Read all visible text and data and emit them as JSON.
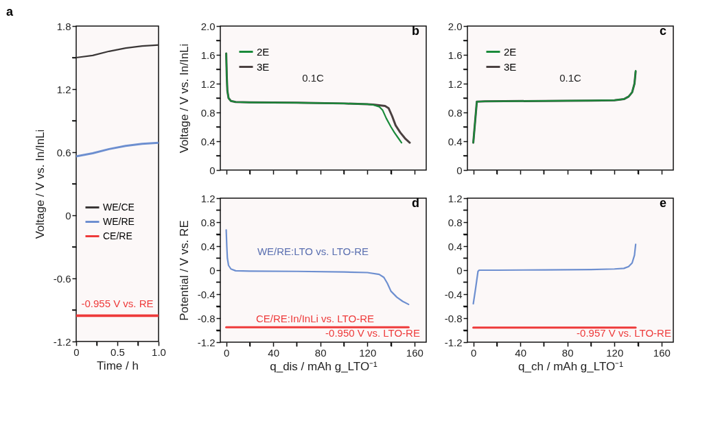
{
  "chart_data": [
    {
      "type": "line",
      "title": "a",
      "xlabel": "Time / h",
      "ylabel": "Voltage / V vs. In/InLi",
      "x": [
        0,
        0.2,
        0.4,
        0.6,
        0.8,
        1.0
      ],
      "series": [
        {
          "name": "WE/CE",
          "color": "#3a3636",
          "values": [
            1.5,
            1.52,
            1.56,
            1.59,
            1.61,
            1.62
          ]
        },
        {
          "name": "WE/RE",
          "color": "#6d8fd0",
          "values": [
            0.56,
            0.59,
            0.63,
            0.66,
            0.68,
            0.69
          ]
        },
        {
          "name": "CE/RE",
          "color": "#ee3a3a",
          "values": [
            -0.955,
            -0.955,
            -0.955,
            -0.955,
            -0.955,
            -0.955
          ]
        }
      ],
      "xlim": [
        0,
        1
      ],
      "xticks": [
        0,
        {
          "value": 0.25,
          "label": null
        },
        0.5,
        {
          "value": 0.75,
          "label": null
        },
        {
          "value": 1,
          "label": "1.0"
        }
      ],
      "ylim": [
        -1.2,
        1.8
      ],
      "yticks": [
        -1.2,
        {
          "value": -0.9,
          "label": null
        },
        -0.6,
        {
          "value": -0.3,
          "label": null
        },
        0,
        {
          "value": 0.3,
          "label": null
        },
        0.6,
        {
          "value": 0.9,
          "label": null
        },
        1.2,
        {
          "value": 1.5,
          "label": null
        },
        1.8
      ],
      "annotations": [
        "-0.955 V vs. RE"
      ],
      "legend": "left",
      "grid": false
    },
    {
      "type": "line",
      "title": "b",
      "ylabel": "Voltage / V vs. In/InLi",
      "series": [
        {
          "name": "2E",
          "color": "#1a8a3a",
          "x": [
            0,
            0.5,
            1,
            2,
            4,
            8,
            20,
            60,
            100,
            120,
            125,
            130,
            133,
            136,
            140,
            143,
            146,
            149
          ],
          "values": [
            1.62,
            1.3,
            1.1,
            1.0,
            0.96,
            0.945,
            0.94,
            0.935,
            0.925,
            0.915,
            0.905,
            0.88,
            0.83,
            0.72,
            0.6,
            0.52,
            0.45,
            0.38
          ]
        },
        {
          "name": "3E",
          "color": "#4a4040",
          "x": [
            0,
            0.5,
            1,
            2,
            4,
            8,
            20,
            60,
            100,
            120,
            125,
            130,
            135,
            138,
            141,
            144,
            148,
            152,
            156
          ],
          "values": [
            1.62,
            1.3,
            1.1,
            1.0,
            0.96,
            0.945,
            0.94,
            0.935,
            0.925,
            0.915,
            0.91,
            0.9,
            0.89,
            0.86,
            0.75,
            0.62,
            0.52,
            0.44,
            0.38
          ]
        }
      ],
      "xlim": [
        -5,
        170
      ],
      "xticks": [
        0,
        {
          "value": 20,
          "label": null
        },
        40,
        {
          "value": 60,
          "label": null
        },
        80,
        {
          "value": 100,
          "label": null
        },
        120,
        {
          "value": 140,
          "label": null
        },
        160
      ],
      "ylim": [
        0,
        2
      ],
      "yticks": [
        0,
        {
          "value": 0.2,
          "label": null
        },
        0.4,
        {
          "value": 0.6,
          "label": null
        },
        0.8,
        {
          "value": 1.0,
          "label": null
        },
        1.2,
        {
          "value": 1.4,
          "label": null
        },
        1.6,
        {
          "value": 1.8,
          "label": null
        },
        {
          "value": 2,
          "label": "2.0"
        }
      ],
      "tick_labels": "y",
      "annotations": [
        "0.1C"
      ],
      "legend": "top left",
      "grid": false
    },
    {
      "type": "line",
      "title": "c",
      "series": [
        {
          "name": "2E",
          "color": "#1a8a3a",
          "x": [
            0,
            3,
            10,
            60,
            100,
            120,
            128,
            132,
            135,
            137,
            138
          ],
          "values": [
            0.38,
            0.95,
            0.955,
            0.96,
            0.965,
            0.97,
            0.985,
            1.02,
            1.08,
            1.2,
            1.38
          ]
        },
        {
          "name": "3E",
          "color": "#4a4040",
          "x": [
            0,
            3,
            10,
            60,
            100,
            120,
            128,
            132,
            135,
            137,
            138
          ],
          "values": [
            0.38,
            0.95,
            0.955,
            0.96,
            0.965,
            0.97,
            0.985,
            1.02,
            1.08,
            1.2,
            1.37
          ]
        }
      ],
      "xlim": [
        -5,
        170
      ],
      "xticks": [
        0,
        {
          "value": 20,
          "label": null
        },
        40,
        {
          "value": 60,
          "label": null
        },
        80,
        {
          "value": 100,
          "label": null
        },
        120,
        {
          "value": 140,
          "label": null
        },
        160
      ],
      "ylim": [
        0,
        2
      ],
      "yticks": [
        0,
        {
          "value": 0.2,
          "label": null
        },
        0.4,
        {
          "value": 0.6,
          "label": null
        },
        0.8,
        {
          "value": 1.0,
          "label": null
        },
        1.2,
        {
          "value": 1.4,
          "label": null
        },
        1.6,
        {
          "value": 1.8,
          "label": null
        },
        {
          "value": 2,
          "label": "2.0"
        }
      ],
      "tick_labels": "y",
      "annotations": [
        "0.1C"
      ],
      "legend": "top left",
      "grid": false
    },
    {
      "type": "line",
      "title": "d",
      "xlabel": "q_dis / mAh g_LTO⁻¹",
      "ylabel": "Potential / V vs. RE",
      "series": [
        {
          "color": "#6d8fd0",
          "x": [
            0,
            0.5,
            1,
            2,
            4,
            8,
            20,
            60,
            100,
            120,
            130,
            134,
            137,
            140,
            145,
            150,
            155
          ],
          "values": [
            0.67,
            0.4,
            0.2,
            0.08,
            0.02,
            -0.01,
            -0.015,
            -0.02,
            -0.03,
            -0.04,
            -0.07,
            -0.12,
            -0.22,
            -0.35,
            -0.45,
            -0.52,
            -0.57
          ]
        },
        {
          "color": "#ee3a3a",
          "x": [
            0,
            155
          ],
          "values": [
            -0.95,
            -0.95
          ]
        }
      ],
      "xlim": [
        -5,
        170
      ],
      "xticks": [
        0,
        {
          "value": 20,
          "label": null
        },
        40,
        {
          "value": 60,
          "label": null
        },
        80,
        {
          "value": 100,
          "label": null
        },
        120,
        {
          "value": 140,
          "label": null
        },
        160
      ],
      "ylim": [
        -1.2,
        1.2
      ],
      "yticks": [
        -1.2,
        {
          "value": -1.0,
          "label": null
        },
        -0.8,
        {
          "value": -0.6,
          "label": null
        },
        -0.4,
        {
          "value": -0.2,
          "label": null
        },
        0,
        {
          "value": 0.2,
          "label": null
        },
        0.4,
        {
          "value": 0.6,
          "label": null
        },
        0.8,
        {
          "value": 1.0,
          "label": null
        },
        1.2
      ],
      "annotations": [
        "WE/RE:LTO vs. LTO-RE",
        "CE/RE:In/InLi vs. LTO-RE",
        "-0.950 V vs. LTO-RE"
      ],
      "grid": false
    },
    {
      "type": "line",
      "title": "e",
      "xlabel": "q_ch / mAh g_LTO⁻¹",
      "series": [
        {
          "color": "#6d8fd0",
          "x": [
            0,
            2,
            4,
            5,
            20,
            60,
            100,
            120,
            128,
            132,
            135,
            137,
            138
          ],
          "values": [
            -0.56,
            -0.3,
            -0.02,
            0.0,
            0.0,
            0.005,
            0.01,
            0.02,
            0.03,
            0.06,
            0.12,
            0.25,
            0.43
          ]
        },
        {
          "color": "#ee3a3a",
          "x": [
            0,
            138
          ],
          "values": [
            -0.957,
            -0.957
          ]
        }
      ],
      "xlim": [
        -5,
        170
      ],
      "xticks": [
        0,
        {
          "value": 20,
          "label": null
        },
        40,
        {
          "value": 60,
          "label": null
        },
        80,
        {
          "value": 100,
          "label": null
        },
        120,
        {
          "value": 140,
          "label": null
        },
        160
      ],
      "ylim": [
        -1.2,
        1.2
      ],
      "yticks": [
        -1.2,
        {
          "value": -1.0,
          "label": null
        },
        -0.8,
        {
          "value": -0.6,
          "label": null
        },
        -0.4,
        {
          "value": -0.2,
          "label": null
        },
        0,
        {
          "value": 0.2,
          "label": null
        },
        0.4,
        {
          "value": 0.6,
          "label": null
        },
        0.8,
        {
          "value": 1.0,
          "label": null
        },
        1.2
      ],
      "annotations": [
        "-0.957 V vs. LTO-RE"
      ],
      "grid": false
    }
  ]
}
